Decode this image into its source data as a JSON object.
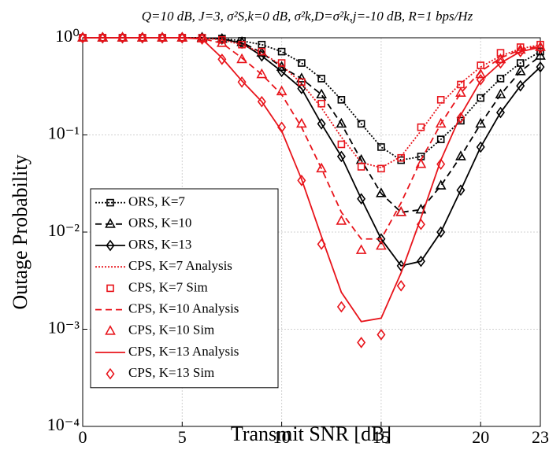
{
  "chart_data": {
    "type": "line",
    "title": "Q=10 dB, J=3, σ²S,k=0 dB, σ²k,D=σ²k,j=-10 dB, R=1 bps/Hz",
    "xlabel": "Transmit SNR [dB]",
    "ylabel": "Outage Probability",
    "x": [
      0,
      1,
      2,
      3,
      4,
      5,
      6,
      7,
      8,
      9,
      10,
      11,
      12,
      13,
      14,
      15,
      16,
      17,
      18,
      19,
      20,
      21,
      22,
      23
    ],
    "xlim": [
      0,
      23
    ],
    "xticks": [
      0,
      5,
      10,
      15,
      20,
      23
    ],
    "ylim": [
      0.0001,
      1
    ],
    "log_y": true,
    "yticks": [
      {
        "value": 1,
        "label": "10⁰"
      },
      {
        "value": 0.1,
        "label": "10⁻¹"
      },
      {
        "value": 0.01,
        "label": "10⁻²"
      },
      {
        "value": 0.001,
        "label": "10⁻³"
      },
      {
        "value": 0.0001,
        "label": "10⁻⁴"
      }
    ],
    "grid": true,
    "legend": "lower left",
    "series": [
      {
        "name": "ORS, K=7",
        "color": "#000000",
        "linestyle": "dotted",
        "marker": "square",
        "values": [
          1,
          1,
          1,
          1,
          1,
          1,
          1,
          0.98,
          0.93,
          0.85,
          0.72,
          0.55,
          0.38,
          0.23,
          0.13,
          0.075,
          0.055,
          0.06,
          0.09,
          0.14,
          0.24,
          0.38,
          0.55,
          0.72
        ]
      },
      {
        "name": "ORS, K=10",
        "color": "#000000",
        "linestyle": "dashed",
        "marker": "triangle",
        "values": [
          1,
          1,
          1,
          1,
          1,
          1,
          1,
          0.97,
          0.9,
          0.7,
          0.5,
          0.38,
          0.26,
          0.13,
          0.055,
          0.025,
          0.016,
          0.017,
          0.03,
          0.06,
          0.13,
          0.26,
          0.45,
          0.65
        ]
      },
      {
        "name": "ORS, K=13",
        "color": "#000000",
        "linestyle": "solid",
        "marker": "diamond",
        "values": [
          1,
          1,
          1,
          1,
          1,
          1,
          1,
          0.97,
          0.88,
          0.65,
          0.45,
          0.3,
          0.13,
          0.06,
          0.022,
          0.0085,
          0.0045,
          0.005,
          0.01,
          0.027,
          0.075,
          0.17,
          0.32,
          0.5
        ]
      },
      {
        "name": "CPS, K=7 Analysis",
        "color": "#e8141b",
        "linestyle": "dotted",
        "marker": "none",
        "values": [
          1,
          1,
          1,
          1,
          1,
          1,
          1,
          0.95,
          0.85,
          0.7,
          0.52,
          0.34,
          0.19,
          0.095,
          0.052,
          0.046,
          0.06,
          0.11,
          0.21,
          0.34,
          0.5,
          0.65,
          0.77,
          0.85
        ]
      },
      {
        "name": "CPS, K=7 Sim",
        "color": "#e8141b",
        "linestyle": "none",
        "marker": "square",
        "values": [
          1,
          1,
          1,
          1,
          1,
          1,
          1,
          0.95,
          0.85,
          0.72,
          0.55,
          0.35,
          0.21,
          0.08,
          0.047,
          0.045,
          0.058,
          0.12,
          0.23,
          0.33,
          0.52,
          0.7,
          0.8,
          0.85
        ]
      },
      {
        "name": "CPS, K=10 Analysis",
        "color": "#e8141b",
        "linestyle": "dashed",
        "marker": "none",
        "values": [
          1,
          1,
          1,
          1,
          1,
          1,
          0.98,
          0.88,
          0.62,
          0.42,
          0.26,
          0.12,
          0.045,
          0.016,
          0.0085,
          0.0085,
          0.02,
          0.055,
          0.13,
          0.27,
          0.45,
          0.62,
          0.75,
          0.82
        ]
      },
      {
        "name": "CPS, K=10 Sim",
        "color": "#e8141b",
        "linestyle": "none",
        "marker": "triangle",
        "values": [
          1,
          1,
          1,
          1,
          1,
          1,
          0.98,
          0.88,
          0.6,
          0.42,
          0.28,
          0.13,
          0.045,
          0.013,
          0.0065,
          0.0072,
          0.016,
          0.05,
          0.13,
          0.27,
          0.42,
          0.6,
          0.75,
          0.8
        ]
      },
      {
        "name": "CPS, K=13 Analysis",
        "color": "#e8141b",
        "linestyle": "solid",
        "marker": "none",
        "values": [
          1,
          1,
          1,
          1,
          1,
          1,
          0.97,
          0.62,
          0.36,
          0.22,
          0.11,
          0.035,
          0.009,
          0.0024,
          0.0012,
          0.0013,
          0.0038,
          0.014,
          0.055,
          0.16,
          0.36,
          0.55,
          0.72,
          0.8
        ]
      },
      {
        "name": "CPS, K=13 Sim",
        "color": "#e8141b",
        "linestyle": "none",
        "marker": "diamond",
        "values": [
          1,
          1,
          1,
          1,
          1,
          1,
          0.97,
          0.6,
          0.35,
          0.22,
          0.12,
          0.034,
          0.0075,
          0.0017,
          0.00073,
          0.00088,
          0.0028,
          0.012,
          0.05,
          0.15,
          0.37,
          0.55,
          0.72,
          0.78
        ]
      }
    ]
  }
}
